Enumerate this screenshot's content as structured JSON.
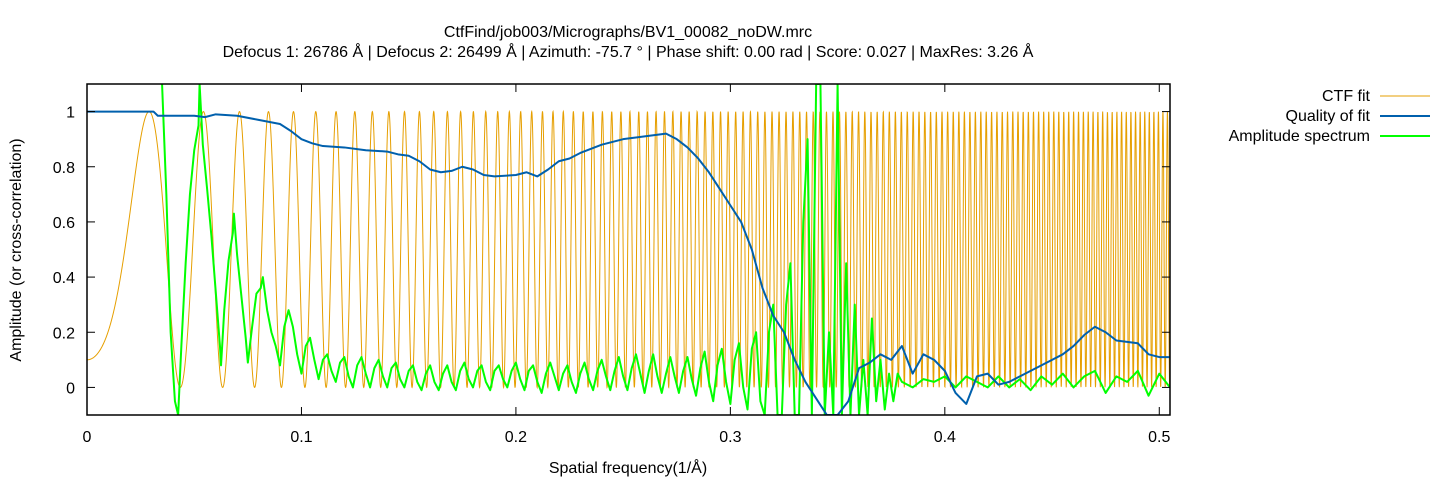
{
  "chart_data": {
    "type": "line",
    "title": "CtfFind/job003/Micrographs/BV1_00082_noDW.mrc",
    "subtitle": "Defocus 1: 26786 Å | Defocus 2: 26499 Å | Azimuth: -75.7 ° | Phase shift: 0.00 rad | Score: 0.027 | MaxRes: 3.26 Å",
    "xlabel": "Spatial frequency(1/Å)",
    "ylabel": "Amplitude (or cross-correlation)",
    "xlim": [
      0,
      0.505
    ],
    "ylim": [
      -0.1,
      1.1
    ],
    "x_ticks": [
      0,
      0.1,
      0.2,
      0.3,
      0.4,
      0.5
    ],
    "x_tick_labels": [
      "0",
      "0.1",
      "0.2",
      "0.3",
      "0.4",
      "0.5"
    ],
    "y_ticks": [
      0,
      0.2,
      0.4,
      0.6,
      0.8,
      1
    ],
    "y_tick_labels": [
      "0",
      "0.2",
      "0.4",
      "0.6",
      "0.8",
      "1"
    ],
    "grid": false,
    "legend_position": "top-right outside",
    "series": [
      {
        "name": "CTF fit",
        "color": "#e69f00",
        "model": "ctf",
        "x_first_zero": 0.0435,
        "amplitude_contrast_baseline_at_origin": 0.1,
        "note_y_range": [
          0,
          1
        ]
      },
      {
        "name": "Quality of fit",
        "color": "#0060ad",
        "points": [
          [
            0.0,
            1.0
          ],
          [
            0.02,
            1.0
          ],
          [
            0.031,
            1.0
          ],
          [
            0.033,
            0.985
          ],
          [
            0.05,
            0.985
          ],
          [
            0.055,
            0.98
          ],
          [
            0.06,
            0.99
          ],
          [
            0.07,
            0.985
          ],
          [
            0.08,
            0.97
          ],
          [
            0.09,
            0.955
          ],
          [
            0.095,
            0.93
          ],
          [
            0.1,
            0.9
          ],
          [
            0.105,
            0.885
          ],
          [
            0.11,
            0.875
          ],
          [
            0.12,
            0.87
          ],
          [
            0.13,
            0.86
          ],
          [
            0.14,
            0.855
          ],
          [
            0.145,
            0.845
          ],
          [
            0.15,
            0.84
          ],
          [
            0.155,
            0.82
          ],
          [
            0.16,
            0.79
          ],
          [
            0.165,
            0.78
          ],
          [
            0.17,
            0.785
          ],
          [
            0.175,
            0.8
          ],
          [
            0.18,
            0.79
          ],
          [
            0.185,
            0.77
          ],
          [
            0.19,
            0.765
          ],
          [
            0.2,
            0.77
          ],
          [
            0.205,
            0.78
          ],
          [
            0.21,
            0.765
          ],
          [
            0.215,
            0.79
          ],
          [
            0.22,
            0.82
          ],
          [
            0.225,
            0.83
          ],
          [
            0.23,
            0.85
          ],
          [
            0.24,
            0.88
          ],
          [
            0.25,
            0.9
          ],
          [
            0.255,
            0.905
          ],
          [
            0.26,
            0.91
          ],
          [
            0.265,
            0.915
          ],
          [
            0.27,
            0.92
          ],
          [
            0.275,
            0.9
          ],
          [
            0.28,
            0.87
          ],
          [
            0.285,
            0.83
          ],
          [
            0.29,
            0.78
          ],
          [
            0.295,
            0.72
          ],
          [
            0.3,
            0.66
          ],
          [
            0.305,
            0.6
          ],
          [
            0.31,
            0.5
          ],
          [
            0.315,
            0.36
          ],
          [
            0.32,
            0.26
          ],
          [
            0.325,
            0.2
          ],
          [
            0.33,
            0.1
          ],
          [
            0.335,
            0.02
          ],
          [
            0.34,
            -0.04
          ],
          [
            0.345,
            -0.1
          ],
          [
            0.35,
            -0.1
          ],
          [
            0.355,
            -0.05
          ],
          [
            0.36,
            0.07
          ],
          [
            0.365,
            0.09
          ],
          [
            0.37,
            0.12
          ],
          [
            0.375,
            0.1
          ],
          [
            0.38,
            0.15
          ],
          [
            0.385,
            0.05
          ],
          [
            0.39,
            0.12
          ],
          [
            0.395,
            0.1
          ],
          [
            0.4,
            0.06
          ],
          [
            0.405,
            -0.02
          ],
          [
            0.41,
            -0.06
          ],
          [
            0.415,
            0.04
          ],
          [
            0.42,
            0.05
          ],
          [
            0.425,
            0.01
          ],
          [
            0.43,
            0.02
          ],
          [
            0.44,
            0.06
          ],
          [
            0.45,
            0.1
          ],
          [
            0.455,
            0.12
          ],
          [
            0.46,
            0.15
          ],
          [
            0.465,
            0.19
          ],
          [
            0.47,
            0.22
          ],
          [
            0.475,
            0.2
          ],
          [
            0.48,
            0.17
          ],
          [
            0.49,
            0.16
          ],
          [
            0.495,
            0.12
          ],
          [
            0.5,
            0.11
          ],
          [
            0.505,
            0.11
          ]
        ]
      },
      {
        "name": "Amplitude spectrum",
        "color": "#00ff00",
        "points": [
          [
            0.035,
            1.1
          ],
          [
            0.037,
            0.7
          ],
          [
            0.039,
            0.2
          ],
          [
            0.041,
            -0.05
          ],
          [
            0.0425,
            -0.1
          ],
          [
            0.044,
            0.15
          ],
          [
            0.046,
            0.45
          ],
          [
            0.048,
            0.7
          ],
          [
            0.05,
            0.86
          ],
          [
            0.052,
            0.95
          ],
          [
            0.0525,
            1.1
          ],
          [
            0.054,
            0.88
          ],
          [
            0.056,
            0.72
          ],
          [
            0.058,
            0.55
          ],
          [
            0.06,
            0.35
          ],
          [
            0.062,
            0.15
          ],
          [
            0.0625,
            0.08
          ],
          [
            0.064,
            0.28
          ],
          [
            0.066,
            0.46
          ],
          [
            0.068,
            0.56
          ],
          [
            0.0685,
            0.63
          ],
          [
            0.07,
            0.48
          ],
          [
            0.072,
            0.33
          ],
          [
            0.074,
            0.18
          ],
          [
            0.075,
            0.09
          ],
          [
            0.077,
            0.22
          ],
          [
            0.079,
            0.34
          ],
          [
            0.081,
            0.36
          ],
          [
            0.082,
            0.4
          ],
          [
            0.084,
            0.28
          ],
          [
            0.086,
            0.2
          ],
          [
            0.088,
            0.15
          ],
          [
            0.09,
            0.08
          ],
          [
            0.092,
            0.22
          ],
          [
            0.094,
            0.28
          ],
          [
            0.096,
            0.22
          ],
          [
            0.098,
            0.12
          ],
          [
            0.1,
            0.05
          ],
          [
            0.102,
            0.15
          ],
          [
            0.104,
            0.18
          ],
          [
            0.106,
            0.1
          ],
          [
            0.108,
            0.03
          ],
          [
            0.11,
            0.1
          ],
          [
            0.112,
            0.12
          ],
          [
            0.114,
            0.06
          ],
          [
            0.116,
            0.02
          ],
          [
            0.118,
            0.09
          ],
          [
            0.12,
            0.11
          ],
          [
            0.122,
            0.04
          ],
          [
            0.124,
            0.0
          ],
          [
            0.126,
            0.08
          ],
          [
            0.128,
            0.11
          ],
          [
            0.13,
            0.05
          ],
          [
            0.132,
            0.0
          ],
          [
            0.134,
            0.07
          ],
          [
            0.136,
            0.1
          ],
          [
            0.138,
            0.04
          ],
          [
            0.14,
            0.0
          ],
          [
            0.142,
            0.07
          ],
          [
            0.144,
            0.09
          ],
          [
            0.146,
            0.03
          ],
          [
            0.148,
            0.0
          ],
          [
            0.15,
            0.06
          ],
          [
            0.152,
            0.08
          ],
          [
            0.154,
            0.02
          ],
          [
            0.156,
            -0.01
          ],
          [
            0.158,
            0.05
          ],
          [
            0.16,
            0.08
          ],
          [
            0.162,
            0.02
          ],
          [
            0.164,
            -0.01
          ],
          [
            0.166,
            0.05
          ],
          [
            0.168,
            0.08
          ],
          [
            0.17,
            0.02
          ],
          [
            0.172,
            -0.01
          ],
          [
            0.174,
            0.06
          ],
          [
            0.176,
            0.09
          ],
          [
            0.178,
            0.03
          ],
          [
            0.18,
            0.0
          ],
          [
            0.182,
            0.06
          ],
          [
            0.184,
            0.08
          ],
          [
            0.186,
            0.02
          ],
          [
            0.188,
            -0.01
          ],
          [
            0.19,
            0.06
          ],
          [
            0.192,
            0.08
          ],
          [
            0.194,
            0.03
          ],
          [
            0.196,
            0.0
          ],
          [
            0.198,
            0.06
          ],
          [
            0.2,
            0.09
          ],
          [
            0.202,
            0.03
          ],
          [
            0.204,
            -0.01
          ],
          [
            0.206,
            0.06
          ],
          [
            0.208,
            0.08
          ],
          [
            0.21,
            0.02
          ],
          [
            0.212,
            -0.02
          ],
          [
            0.214,
            0.05
          ],
          [
            0.216,
            0.09
          ],
          [
            0.218,
            0.04
          ],
          [
            0.22,
            -0.01
          ],
          [
            0.222,
            0.05
          ],
          [
            0.224,
            0.08
          ],
          [
            0.226,
            0.02
          ],
          [
            0.228,
            -0.02
          ],
          [
            0.23,
            0.05
          ],
          [
            0.232,
            0.09
          ],
          [
            0.234,
            0.03
          ],
          [
            0.236,
            -0.01
          ],
          [
            0.238,
            0.06
          ],
          [
            0.24,
            0.1
          ],
          [
            0.242,
            0.04
          ],
          [
            0.244,
            -0.01
          ],
          [
            0.246,
            0.06
          ],
          [
            0.248,
            0.11
          ],
          [
            0.25,
            0.04
          ],
          [
            0.252,
            -0.01
          ],
          [
            0.254,
            0.07
          ],
          [
            0.256,
            0.12
          ],
          [
            0.258,
            0.05
          ],
          [
            0.26,
            -0.02
          ],
          [
            0.262,
            0.06
          ],
          [
            0.264,
            0.12
          ],
          [
            0.266,
            0.04
          ],
          [
            0.268,
            -0.02
          ],
          [
            0.27,
            0.05
          ],
          [
            0.272,
            0.11
          ],
          [
            0.274,
            0.04
          ],
          [
            0.276,
            -0.02
          ],
          [
            0.278,
            0.06
          ],
          [
            0.28,
            0.11
          ],
          [
            0.282,
            0.03
          ],
          [
            0.284,
            -0.03
          ],
          [
            0.286,
            0.07
          ],
          [
            0.288,
            0.13
          ],
          [
            0.29,
            0.02
          ],
          [
            0.292,
            -0.05
          ],
          [
            0.294,
            0.08
          ],
          [
            0.296,
            0.14
          ],
          [
            0.298,
            0.02
          ],
          [
            0.3,
            -0.06
          ],
          [
            0.302,
            0.1
          ],
          [
            0.304,
            0.16
          ],
          [
            0.306,
            0.0
          ],
          [
            0.308,
            -0.08
          ],
          [
            0.31,
            0.14
          ],
          [
            0.312,
            0.2
          ],
          [
            0.314,
            -0.05
          ],
          [
            0.316,
            -0.1
          ],
          [
            0.318,
            0.2
          ],
          [
            0.32,
            0.3
          ],
          [
            0.322,
            -0.1
          ],
          [
            0.324,
            -0.1
          ],
          [
            0.326,
            0.3
          ],
          [
            0.328,
            0.45
          ],
          [
            0.33,
            -0.1
          ],
          [
            0.332,
            -0.1
          ],
          [
            0.334,
            0.6
          ],
          [
            0.336,
            0.9
          ],
          [
            0.338,
            -0.1
          ],
          [
            0.34,
            1.1
          ],
          [
            0.342,
            1.1
          ],
          [
            0.344,
            -0.1
          ],
          [
            0.346,
            0.2
          ],
          [
            0.348,
            -0.1
          ],
          [
            0.35,
            1.1
          ],
          [
            0.352,
            -0.1
          ],
          [
            0.354,
            0.45
          ],
          [
            0.356,
            -0.1
          ],
          [
            0.358,
            0.3
          ],
          [
            0.36,
            -0.1
          ],
          [
            0.362,
            0.1
          ],
          [
            0.364,
            -0.1
          ],
          [
            0.366,
            0.25
          ],
          [
            0.368,
            -0.05
          ],
          [
            0.37,
            0.1
          ],
          [
            0.372,
            -0.08
          ],
          [
            0.374,
            0.05
          ],
          [
            0.376,
            -0.05
          ],
          [
            0.378,
            0.05
          ],
          [
            0.38,
            0.02
          ],
          [
            0.385,
            0.0
          ],
          [
            0.39,
            0.03
          ],
          [
            0.395,
            0.02
          ],
          [
            0.4,
            0.04
          ],
          [
            0.405,
            0.0
          ],
          [
            0.41,
            0.04
          ],
          [
            0.415,
            0.02
          ],
          [
            0.42,
            0.0
          ],
          [
            0.425,
            0.04
          ],
          [
            0.43,
            0.0
          ],
          [
            0.435,
            0.03
          ],
          [
            0.44,
            -0.01
          ],
          [
            0.445,
            0.04
          ],
          [
            0.45,
            0.01
          ],
          [
            0.455,
            0.05
          ],
          [
            0.46,
            0.0
          ],
          [
            0.465,
            0.04
          ],
          [
            0.47,
            0.06
          ],
          [
            0.475,
            -0.02
          ],
          [
            0.48,
            0.04
          ],
          [
            0.485,
            0.02
          ],
          [
            0.49,
            0.06
          ],
          [
            0.495,
            -0.03
          ],
          [
            0.5,
            0.05
          ],
          [
            0.505,
            0.0
          ]
        ]
      }
    ]
  }
}
